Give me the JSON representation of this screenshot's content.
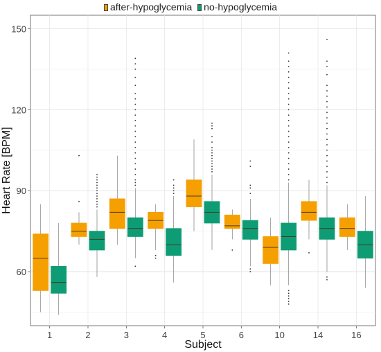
{
  "chart_data": {
    "type": "box",
    "xlabel": "Subject",
    "ylabel": "Heart Rate [BPM]",
    "ylim": [
      40,
      155
    ],
    "yticks": [
      60,
      90,
      120,
      150
    ],
    "categories": [
      "1",
      "2",
      "3",
      "4",
      "5",
      "6",
      "10",
      "14",
      "16"
    ],
    "legend_position": "top",
    "grid": true,
    "series": [
      {
        "name": "after-hypoglycemia",
        "color": "#F5A000",
        "boxes": [
          {
            "min": 45,
            "q1": 53,
            "median": 65,
            "q3": 74,
            "max": 85,
            "outliers": []
          },
          {
            "min": 70,
            "q1": 73,
            "median": 75,
            "q3": 78,
            "max": 82,
            "outliers": [
              86,
              103
            ]
          },
          {
            "min": 70,
            "q1": 76,
            "median": 82,
            "q3": 87,
            "max": 103,
            "outliers": []
          },
          {
            "min": 68,
            "q1": 76,
            "median": 79,
            "q3": 82,
            "max": 85,
            "outliers": [
              65,
              66
            ]
          },
          {
            "min": 75,
            "q1": 84,
            "median": 88,
            "q3": 94,
            "max": 109,
            "outliers": []
          },
          {
            "min": 72,
            "q1": 76,
            "median": 77,
            "q3": 81,
            "max": 83,
            "outliers": [
              68
            ]
          },
          {
            "min": 55,
            "q1": 63,
            "median": 69,
            "q3": 73,
            "max": 80,
            "outliers": []
          },
          {
            "min": 72,
            "q1": 79,
            "median": 82,
            "q3": 86,
            "max": 94,
            "outliers": [
              67
            ]
          },
          {
            "min": 68,
            "q1": 73,
            "median": 76,
            "q3": 80,
            "max": 85,
            "outliers": []
          }
        ]
      },
      {
        "name": "no-hypoglycemia",
        "color": "#0E9C74",
        "boxes": [
          {
            "min": 44,
            "q1": 52,
            "median": 56,
            "q3": 62,
            "max": 78,
            "outliers": []
          },
          {
            "min": 58,
            "q1": 68,
            "median": 72,
            "q3": 75,
            "max": 83,
            "outliers": [
              84,
              85,
              86,
              87,
              88,
              89,
              90,
              91,
              92,
              93,
              94,
              95,
              96
            ]
          },
          {
            "min": 65,
            "q1": 73,
            "median": 76,
            "q3": 80,
            "max": 91,
            "outliers": [
              62,
              92,
              93,
              94,
              96,
              98,
              100,
              102,
              104,
              106,
              108,
              110,
              112,
              114,
              116,
              118,
              120,
              122,
              124,
              126,
              129,
              132,
              135,
              137,
              139
            ]
          },
          {
            "min": 56,
            "q1": 66,
            "median": 70,
            "q3": 76,
            "max": 88,
            "outliers": [
              89,
              90,
              91,
              92,
              94
            ]
          },
          {
            "min": 68,
            "q1": 78,
            "median": 82,
            "q3": 86,
            "max": 96,
            "outliers": [
              97,
              98,
              99,
              100,
              101,
              102,
              103,
              104,
              105,
              106,
              108,
              110,
              113,
              114,
              115
            ]
          },
          {
            "min": 62,
            "q1": 72,
            "median": 76,
            "q3": 79,
            "max": 87,
            "outliers": [
              60,
              61,
              89,
              91,
              92,
              99,
              101
            ]
          },
          {
            "min": 55,
            "q1": 68,
            "median": 73,
            "q3": 78,
            "max": 93,
            "outliers": [
              48,
              49,
              50,
              51,
              52,
              53,
              94,
              96,
              98,
              100,
              102,
              104,
              106,
              108,
              110,
              112,
              114,
              116,
              118,
              120,
              122,
              124,
              126,
              128,
              130,
              132,
              134,
              136,
              138,
              141
            ]
          },
          {
            "min": 60,
            "q1": 72,
            "median": 76,
            "q3": 80,
            "max": 92,
            "outliers": [
              57,
              58,
              93,
              95,
              97,
              99,
              101,
              103,
              105,
              107,
              109,
              111,
              113,
              115,
              117,
              119,
              121,
              123,
              125,
              127,
              129,
              133,
              136,
              138,
              146
            ]
          },
          {
            "min": 54,
            "q1": 65,
            "median": 70,
            "q3": 75,
            "max": 88,
            "outliers": []
          }
        ]
      }
    ]
  }
}
